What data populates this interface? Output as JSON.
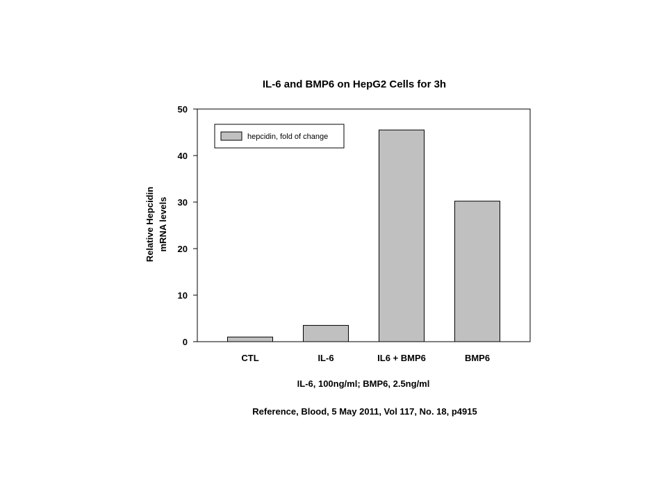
{
  "chart_data": {
    "type": "bar",
    "title": "IL-6 and BMP6 on HepG2 Cells for 3h",
    "ylabel_lines": [
      "Relative Hepcidin",
      "mRNA levels"
    ],
    "xlabel": "IL-6, 100ng/ml; BMP6, 2.5ng/ml",
    "footnote": "Reference, Blood, 5 May 2011, Vol 117, No. 18, p4915",
    "categories": [
      "CTL",
      "IL-6",
      "IL6 + BMP6",
      "BMP6"
    ],
    "series": [
      {
        "name": "hepcidin, fold of change",
        "values": [
          1,
          3.5,
          45.5,
          30.2
        ]
      }
    ],
    "ylim": [
      0,
      50
    ],
    "yticks": [
      "0",
      "10",
      "20",
      "30",
      "40",
      "50"
    ],
    "legend_position": "top-left",
    "grid": false,
    "bar_color": "#c0c0c0",
    "edge_color": "#000000"
  }
}
